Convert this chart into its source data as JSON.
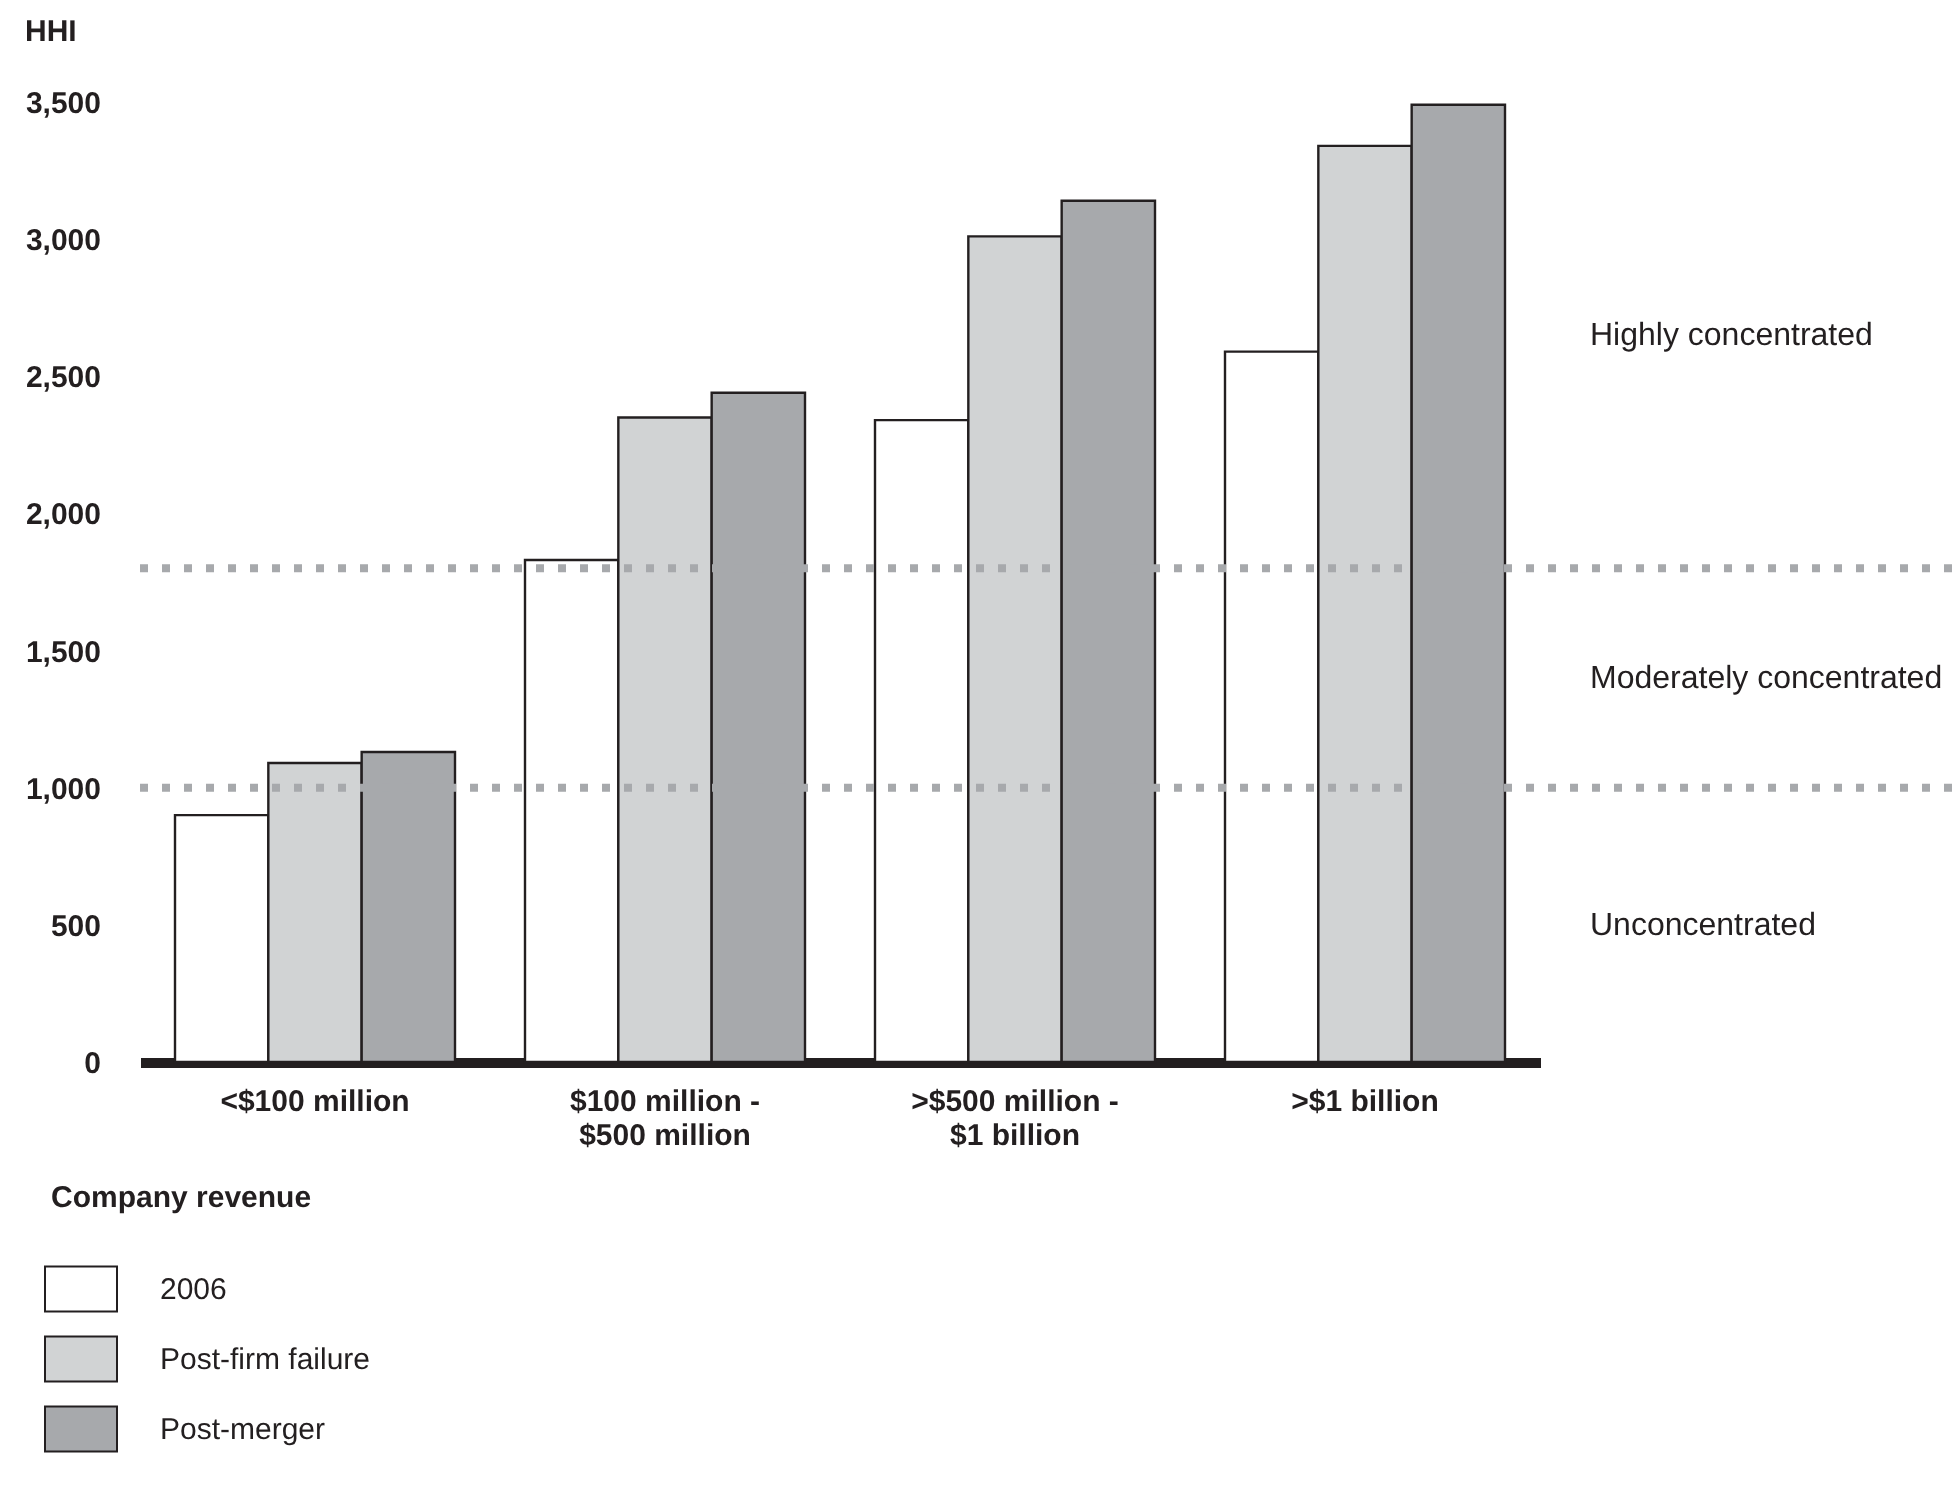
{
  "chart_data": {
    "type": "bar",
    "xlabel": "Company revenue",
    "ylabel": "HHI",
    "categories": [
      "<$100 million",
      "$100 million - $500 million",
      ">$500 million - $1 billion",
      ">$1 billion"
    ],
    "series": [
      {
        "name": "2006",
        "color": "#ffffff",
        "values": [
          900,
          1830,
          2340,
          2590
        ]
      },
      {
        "name": "Post-firm failure",
        "color": "#d1d3d4",
        "values": [
          1090,
          2350,
          3010,
          3340
        ]
      },
      {
        "name": "Post-merger",
        "color": "#a7a9ac",
        "values": [
          1130,
          2440,
          3140,
          3490
        ]
      }
    ],
    "ylim": [
      0,
      3500
    ],
    "yticks": [
      {
        "value": 0,
        "label": "0"
      },
      {
        "value": 500,
        "label": "500"
      },
      {
        "value": 1000,
        "label": "1,000"
      },
      {
        "value": 1500,
        "label": "1,500"
      },
      {
        "value": 2000,
        "label": "2,000"
      },
      {
        "value": 2500,
        "label": "2,500"
      },
      {
        "value": 3000,
        "label": "3,000"
      },
      {
        "value": 3500,
        "label": "3,500"
      }
    ],
    "ref_lines": [
      {
        "axis": "y",
        "value": 1000,
        "color": "#a7a9ac",
        "line_style": "dotted"
      },
      {
        "axis": "y",
        "value": 1800,
        "color": "#a7a9ac",
        "line_style": "dotted"
      }
    ],
    "annotations": [
      "Highly concentrated",
      "Moderately concentrated",
      "Unconcentrated"
    ],
    "legend": "bottom left"
  }
}
